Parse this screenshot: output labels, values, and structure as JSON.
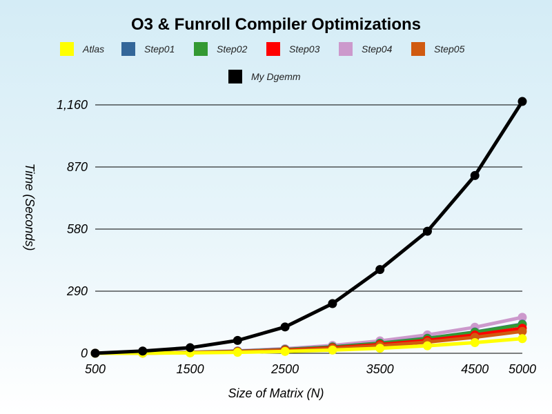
{
  "chart_data": {
    "type": "line",
    "title": "O3 & Funroll Compiler Optimizations",
    "xlabel": "Size of Matrix (N)",
    "ylabel": "Time (Seconds)",
    "x": [
      500,
      1000,
      1500,
      2000,
      2500,
      3000,
      3500,
      4000,
      4500,
      5000
    ],
    "x_tick_labels": [
      "500",
      "1500",
      "2500",
      "3500",
      "4500",
      "5000"
    ],
    "x_tick_values": [
      500,
      1500,
      2500,
      3500,
      4500,
      5000
    ],
    "y_tick_labels": [
      "0",
      "290",
      "580",
      "870",
      "1,160"
    ],
    "y_tick_values": [
      0,
      290,
      580,
      870,
      1160
    ],
    "ylim": [
      0,
      1160
    ],
    "grid": true,
    "legend_position": "top",
    "series": [
      {
        "name": "Atlas",
        "color": "#ffff00",
        "values": [
          0.1,
          0.6,
          1.9,
          4.4,
          8.6,
          14.8,
          23.5,
          35.1,
          50.0,
          68.5
        ]
      },
      {
        "name": "Step01",
        "color": "#336699",
        "values": [
          0.2,
          1.3,
          4.0,
          9.3,
          17.6,
          30.0,
          47.2,
          70.0,
          99.3,
          136.0
        ]
      },
      {
        "name": "Step02",
        "color": "#339933",
        "values": [
          0.2,
          1.2,
          3.9,
          9.0,
          17.2,
          29.3,
          46.3,
          69.0,
          98.0,
          134.0
        ]
      },
      {
        "name": "Step03",
        "color": "#ff0000",
        "values": [
          0.2,
          1.0,
          3.3,
          7.8,
          14.9,
          25.5,
          40.4,
          60.2,
          85.5,
          117.0
        ]
      },
      {
        "name": "Step04",
        "color": "#cc99cc",
        "values": [
          0.2,
          1.5,
          4.8,
          11.3,
          21.5,
          36.7,
          57.8,
          85.7,
          121.5,
          168.0
        ]
      },
      {
        "name": "Step05",
        "color": "#d05a10",
        "values": [
          0.2,
          0.8,
          2.8,
          6.8,
          13.0,
          22.2,
          35.2,
          52.5,
          74.7,
          102.5
        ]
      },
      {
        "name": "My Dgemm",
        "color": "#000000",
        "values": [
          0.5,
          10.5,
          26.0,
          60.0,
          123.0,
          232.0,
          391.0,
          570.0,
          830.0,
          1176.0
        ]
      }
    ]
  }
}
